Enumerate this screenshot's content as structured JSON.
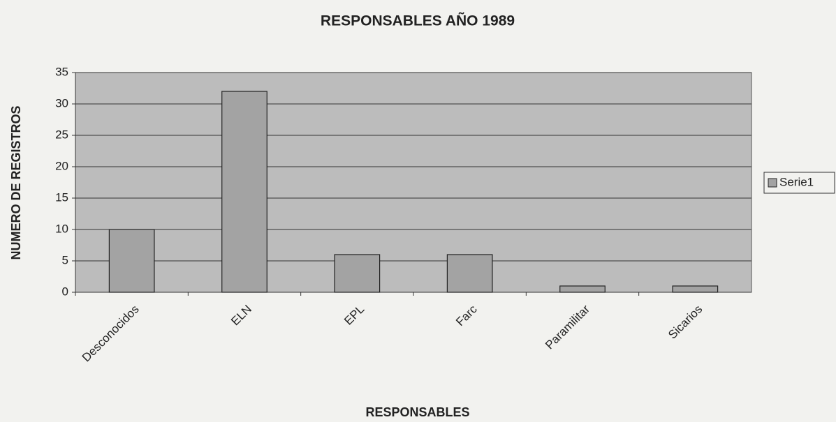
{
  "chart_data": {
    "type": "bar",
    "title": "RESPONSABLES AÑO 1989",
    "x_label": "RESPONSABLES",
    "y_label": "NUMERO DE REGISTROS",
    "categories": [
      "Desconocidos",
      "ELN",
      "EPL",
      "Farc",
      "Paramilitar",
      "Sicarios"
    ],
    "series": [
      {
        "name": "Serie1",
        "color": "#a3a3a3",
        "values": [
          10,
          32,
          6,
          6,
          1,
          1
        ]
      }
    ],
    "ylim": [
      0,
      35
    ],
    "yticks": [
      0,
      5,
      10,
      15,
      20,
      25,
      30,
      35
    ],
    "grid": true,
    "legend": "right"
  }
}
